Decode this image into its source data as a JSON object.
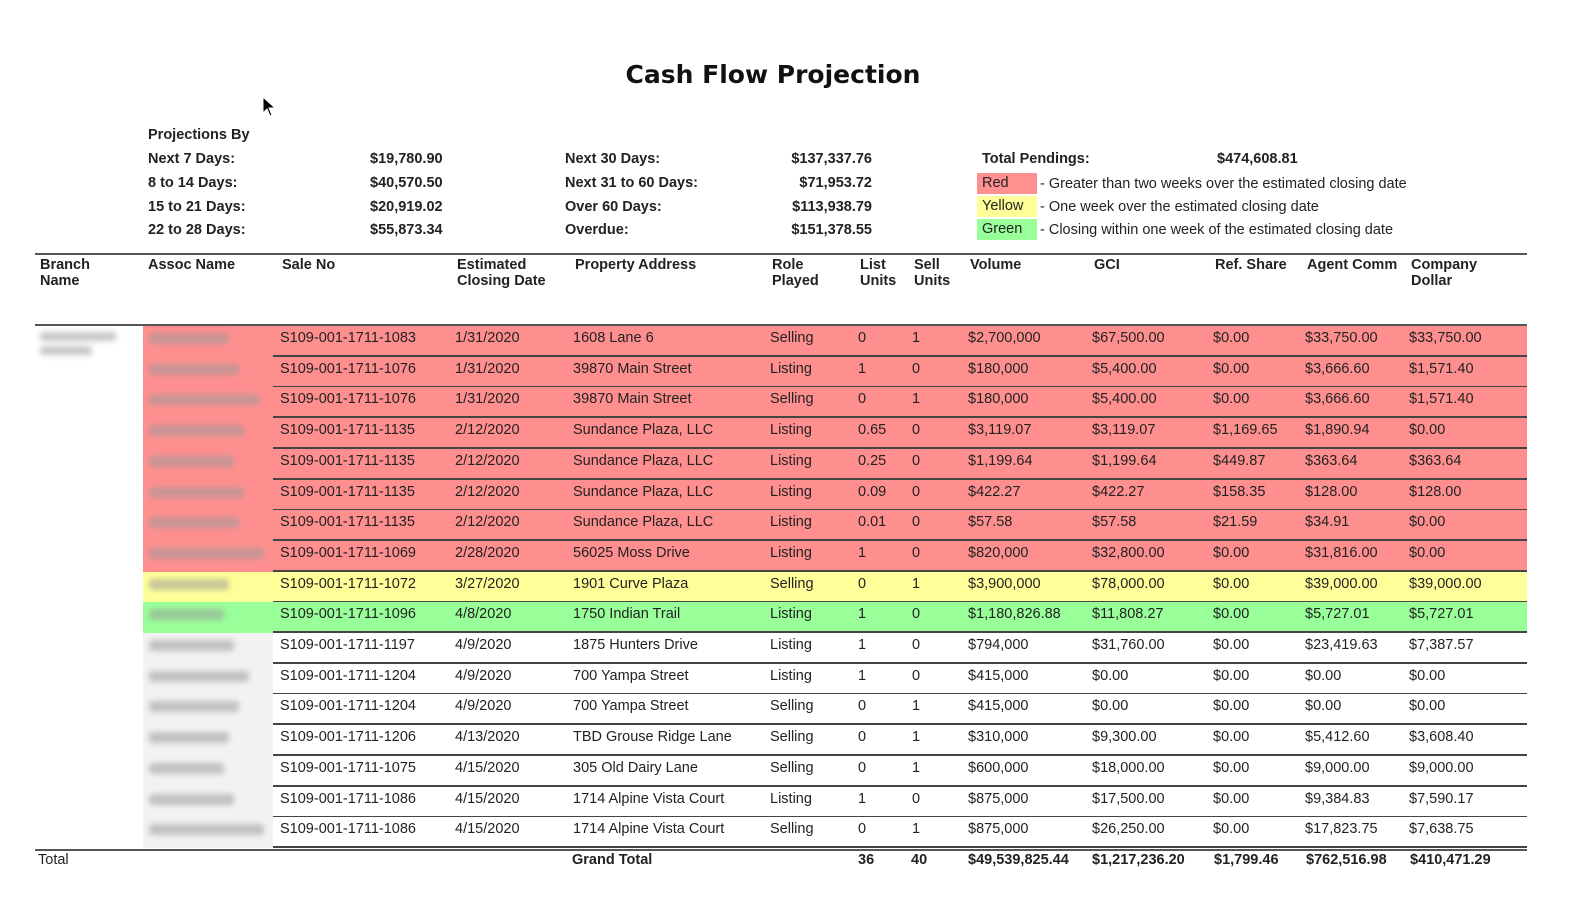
{
  "title": "Cash Flow Projection",
  "projections": {
    "heading": "Projections By",
    "col1": [
      {
        "label": "Next 7 Days:",
        "value": "$19,780.90"
      },
      {
        "label": "8 to 14 Days:",
        "value": "$40,570.50"
      },
      {
        "label": "15 to 21 Days:",
        "value": "$20,919.02"
      },
      {
        "label": "22 to 28 Days:",
        "value": "$55,873.34"
      }
    ],
    "col2": [
      {
        "label": "Next 30 Days:",
        "value": "$137,337.76"
      },
      {
        "label": "Next 31 to 60 Days:",
        "value": "$71,953.72"
      },
      {
        "label": "Over 60 Days:",
        "value": "$113,938.79"
      },
      {
        "label": "Overdue:",
        "value": "$151,378.55"
      }
    ],
    "total_label": "Total Pendings:",
    "total_value": "$474,608.81"
  },
  "legend": [
    {
      "label": "Red",
      "color": "#ff9090",
      "text": "- Greater than two weeks over the estimated closing date"
    },
    {
      "label": "Yellow",
      "color": "#ffff99",
      "text": "- One week over the estimated closing date"
    },
    {
      "label": "Green",
      "color": "#99ff99",
      "text": "- Closing within one week of the estimated closing date"
    }
  ],
  "colors": {
    "red": "#ff8f8f",
    "yellow": "#ffff99",
    "green": "#99ff99",
    "none": "#ffffff"
  },
  "table": {
    "headers": {
      "branch": "Branch Name",
      "assoc": "Assoc Name",
      "sale_no": "Sale No",
      "date": "Estimated Closing Date",
      "address": "Property Address",
      "role": "Role Played",
      "list": "List Units",
      "sell": "Sell Units",
      "volume": "Volume",
      "gci": "GCI",
      "ref": "Ref. Share",
      "agent": "Agent Comm",
      "company": "Company Dollar"
    },
    "rows": [
      {
        "status": "red",
        "sale_no": "S109-001-1711-1083",
        "date": "1/31/2020",
        "address": "1608 Lane 6",
        "role": "Selling",
        "list": "0",
        "sell": "1",
        "volume": "$2,700,000",
        "gci": "$67,500.00",
        "ref": "$0.00",
        "agent": "$33,750.00",
        "company": "$33,750.00"
      },
      {
        "status": "red",
        "sale_no": "S109-001-1711-1076",
        "date": "1/31/2020",
        "address": "39870 Main Street",
        "role": "Listing",
        "list": "1",
        "sell": "0",
        "volume": "$180,000",
        "gci": "$5,400.00",
        "ref": "$0.00",
        "agent": "$3,666.60",
        "company": "$1,571.40"
      },
      {
        "status": "red",
        "sale_no": "S109-001-1711-1076",
        "date": "1/31/2020",
        "address": "39870 Main Street",
        "role": "Selling",
        "list": "0",
        "sell": "1",
        "volume": "$180,000",
        "gci": "$5,400.00",
        "ref": "$0.00",
        "agent": "$3,666.60",
        "company": "$1,571.40"
      },
      {
        "status": "red",
        "sale_no": "S109-001-1711-1135",
        "date": "2/12/2020",
        "address": "Sundance Plaza, LLC",
        "role": "Listing",
        "list": "0.65",
        "sell": "0",
        "volume": "$3,119.07",
        "gci": "$3,119.07",
        "ref": "$1,169.65",
        "agent": "$1,890.94",
        "company": "$0.00"
      },
      {
        "status": "red",
        "sale_no": "S109-001-1711-1135",
        "date": "2/12/2020",
        "address": "Sundance Plaza, LLC",
        "role": "Listing",
        "list": "0.25",
        "sell": "0",
        "volume": "$1,199.64",
        "gci": "$1,199.64",
        "ref": "$449.87",
        "agent": "$363.64",
        "company": "$363.64"
      },
      {
        "status": "red",
        "sale_no": "S109-001-1711-1135",
        "date": "2/12/2020",
        "address": "Sundance Plaza, LLC",
        "role": "Listing",
        "list": "0.09",
        "sell": "0",
        "volume": "$422.27",
        "gci": "$422.27",
        "ref": "$158.35",
        "agent": "$128.00",
        "company": "$128.00"
      },
      {
        "status": "red",
        "sale_no": "S109-001-1711-1135",
        "date": "2/12/2020",
        "address": "Sundance Plaza, LLC",
        "role": "Listing",
        "list": "0.01",
        "sell": "0",
        "volume": "$57.58",
        "gci": "$57.58",
        "ref": "$21.59",
        "agent": "$34.91",
        "company": "$0.00"
      },
      {
        "status": "red",
        "sale_no": "S109-001-1711-1069",
        "date": "2/28/2020",
        "address": "56025 Moss Drive",
        "role": "Listing",
        "list": "1",
        "sell": "0",
        "volume": "$820,000",
        "gci": "$32,800.00",
        "ref": "$0.00",
        "agent": "$31,816.00",
        "company": "$0.00"
      },
      {
        "status": "yellow",
        "sale_no": "S109-001-1711-1072",
        "date": "3/27/2020",
        "address": "1901 Curve Plaza",
        "role": "Selling",
        "list": "0",
        "sell": "1",
        "volume": "$3,900,000",
        "gci": "$78,000.00",
        "ref": "$0.00",
        "agent": "$39,000.00",
        "company": "$39,000.00"
      },
      {
        "status": "green",
        "sale_no": "S109-001-1711-1096",
        "date": "4/8/2020",
        "address": "1750 Indian Trail",
        "role": "Listing",
        "list": "1",
        "sell": "0",
        "volume": "$1,180,826.88",
        "gci": "$11,808.27",
        "ref": "$0.00",
        "agent": "$5,727.01",
        "company": "$5,727.01"
      },
      {
        "status": "none",
        "sale_no": "S109-001-1711-1197",
        "date": "4/9/2020",
        "address": "1875 Hunters Drive",
        "role": "Listing",
        "list": "1",
        "sell": "0",
        "volume": "$794,000",
        "gci": "$31,760.00",
        "ref": "$0.00",
        "agent": "$23,419.63",
        "company": "$7,387.57"
      },
      {
        "status": "none",
        "sale_no": "S109-001-1711-1204",
        "date": "4/9/2020",
        "address": "700 Yampa Street",
        "role": "Listing",
        "list": "1",
        "sell": "0",
        "volume": "$415,000",
        "gci": "$0.00",
        "ref": "$0.00",
        "agent": "$0.00",
        "company": "$0.00"
      },
      {
        "status": "none",
        "sale_no": "S109-001-1711-1204",
        "date": "4/9/2020",
        "address": "700 Yampa Street",
        "role": "Selling",
        "list": "0",
        "sell": "1",
        "volume": "$415,000",
        "gci": "$0.00",
        "ref": "$0.00",
        "agent": "$0.00",
        "company": "$0.00"
      },
      {
        "status": "none",
        "sale_no": "S109-001-1711-1206",
        "date": "4/13/2020",
        "address": "TBD Grouse Ridge Lane",
        "role": "Selling",
        "list": "0",
        "sell": "1",
        "volume": "$310,000",
        "gci": "$9,300.00",
        "ref": "$0.00",
        "agent": "$5,412.60",
        "company": "$3,608.40"
      },
      {
        "status": "none",
        "sale_no": "S109-001-1711-1075",
        "date": "4/15/2020",
        "address": "305 Old Dairy Lane",
        "role": "Selling",
        "list": "0",
        "sell": "1",
        "volume": "$600,000",
        "gci": "$18,000.00",
        "ref": "$0.00",
        "agent": "$9,000.00",
        "company": "$9,000.00"
      },
      {
        "status": "none",
        "sale_no": "S109-001-1711-1086",
        "date": "4/15/2020",
        "address": "1714 Alpine Vista Court",
        "role": "Listing",
        "list": "1",
        "sell": "0",
        "volume": "$875,000",
        "gci": "$17,500.00",
        "ref": "$0.00",
        "agent": "$9,384.83",
        "company": "$7,590.17"
      },
      {
        "status": "none",
        "sale_no": "S109-001-1711-1086",
        "date": "4/15/2020",
        "address": "1714 Alpine Vista Court",
        "role": "Selling",
        "list": "0",
        "sell": "1",
        "volume": "$875,000",
        "gci": "$26,250.00",
        "ref": "$0.00",
        "agent": "$17,823.75",
        "company": "$7,638.75"
      }
    ],
    "totals": {
      "label": "Total",
      "grand_label": "Grand Total",
      "list": "36",
      "sell": "40",
      "volume": "$49,539,825.44",
      "gci": "$1,217,236.20",
      "ref": "$1,799.46",
      "agent": "$762,516.98",
      "company": "$410,471.29"
    }
  }
}
